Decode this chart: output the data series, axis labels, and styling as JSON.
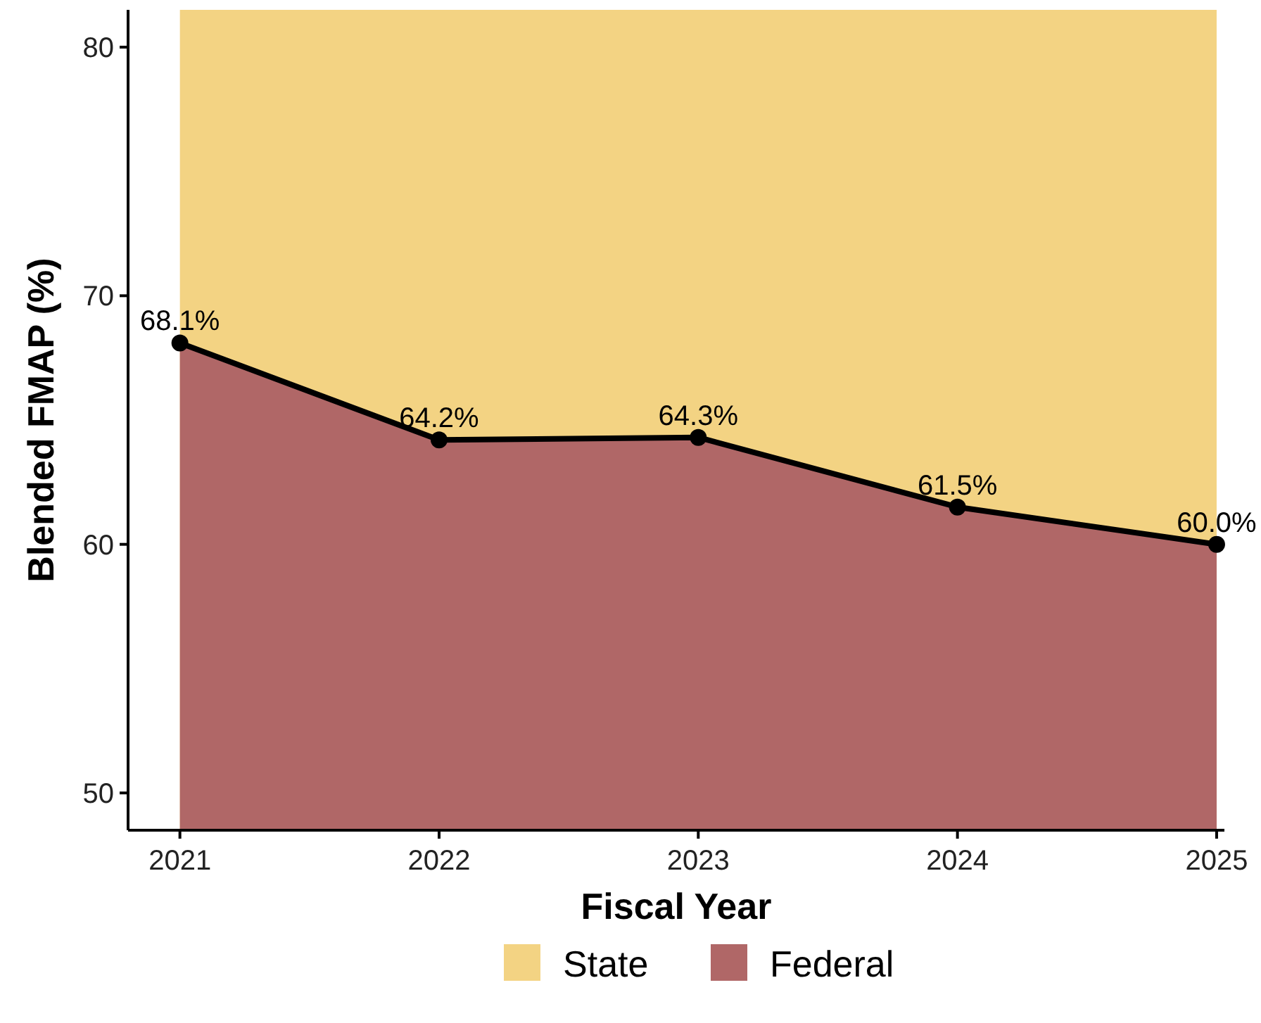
{
  "chart_data": {
    "type": "area",
    "xlabel": "Fiscal Year",
    "ylabel": "Blended FMAP (%)",
    "x": [
      2021,
      2022,
      2023,
      2024,
      2025
    ],
    "xlim": [
      2020.8,
      2025.03
    ],
    "xticks": [
      2021,
      2022,
      2023,
      2024,
      2025
    ],
    "ylim": [
      48.5,
      81.5
    ],
    "yticks": [
      50,
      60,
      70,
      80
    ],
    "grid": false,
    "legend": "bottom",
    "bands": [
      {
        "axis": "y",
        "from": 48.5,
        "to": 81.5,
        "label": "State",
        "color": "#f3d383"
      }
    ],
    "series": [
      {
        "name": "Federal",
        "color": "#b06767",
        "marker": "circle",
        "line_style": "solid",
        "values": [
          68.1,
          64.2,
          64.3,
          61.5,
          60.0
        ],
        "value_labels": [
          "68.1%",
          "64.2%",
          "64.3%",
          "61.5%",
          "60.0%"
        ]
      }
    ]
  }
}
